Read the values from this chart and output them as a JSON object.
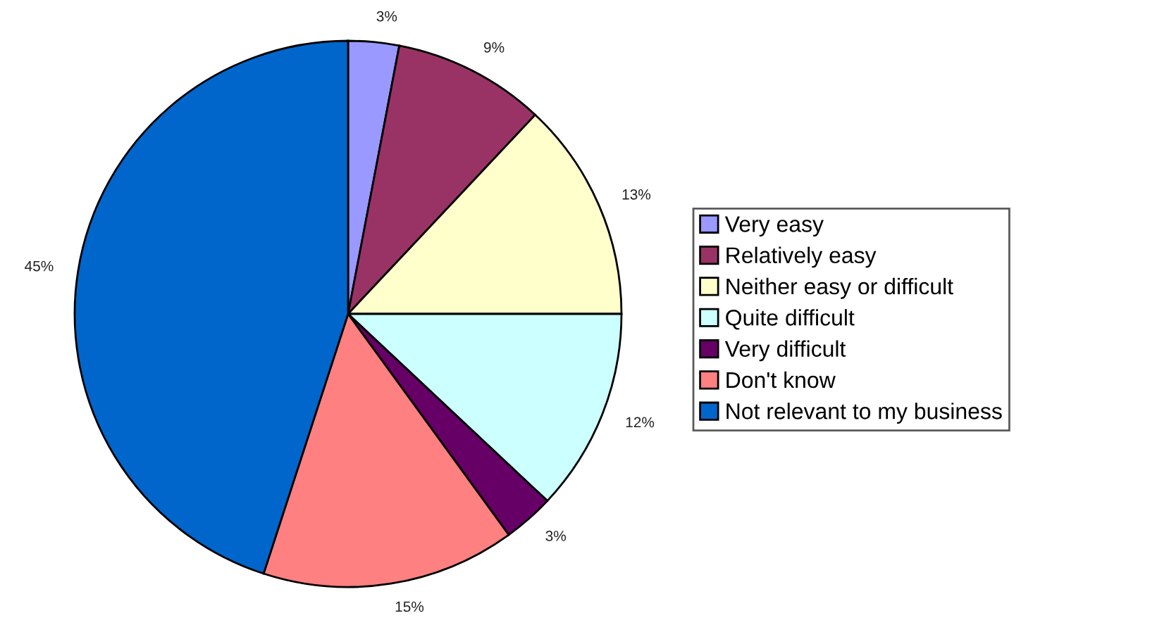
{
  "chart_data": {
    "type": "pie",
    "categories": [
      "Very easy",
      "Relatively easy",
      "Neither easy or difficult",
      "Quite difficult",
      "Very difficult",
      "Don't know",
      "Not relevant to my business"
    ],
    "values": [
      3,
      9,
      13,
      12,
      3,
      15,
      45
    ],
    "colors": [
      "#9999ff",
      "#993366",
      "#ffffcc",
      "#ccffff",
      "#660066",
      "#ff8080",
      "#0066cc"
    ],
    "value_labels": [
      "3%",
      "9%",
      "13%",
      "12%",
      "3%",
      "15%",
      "45%"
    ],
    "legend": "right"
  }
}
